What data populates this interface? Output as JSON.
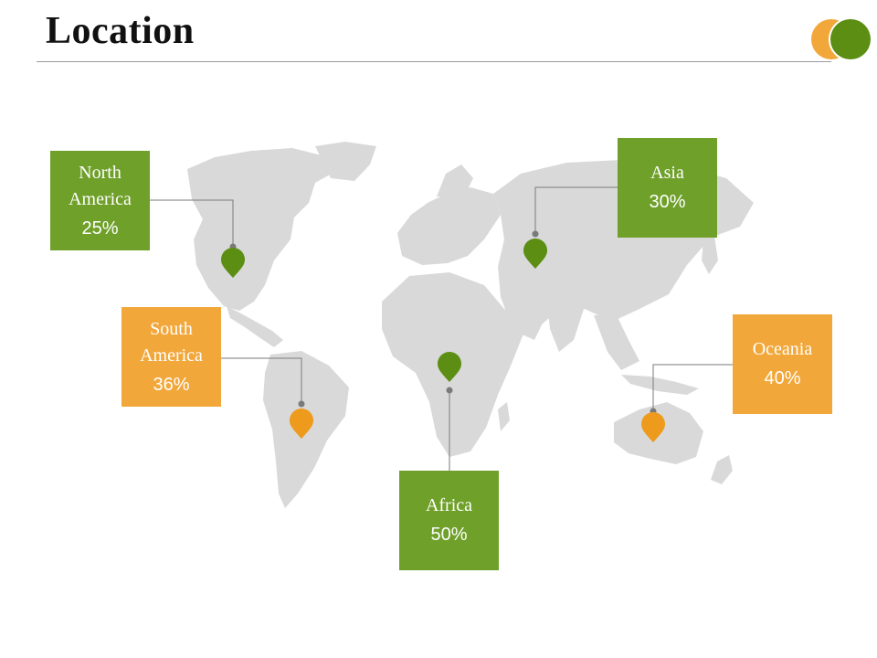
{
  "title": "Location",
  "colors": {
    "green": "#6fa02a",
    "orange": "#f2a73a",
    "pin_green": "#5b8e12",
    "pin_orange": "#ee9a1c",
    "map": "#d9d9d9",
    "leader": "#7a7a7a"
  },
  "regions": [
    {
      "id": "north-america",
      "name": "North\nAmerica",
      "value": "25%",
      "color": "green"
    },
    {
      "id": "south-america",
      "name": "South\nAmerica",
      "value": "36%",
      "color": "orange"
    },
    {
      "id": "africa",
      "name": "Africa",
      "value": "50%",
      "color": "green"
    },
    {
      "id": "asia",
      "name": "Asia",
      "value": "30%",
      "color": "green"
    },
    {
      "id": "oceania",
      "name": "Oceania",
      "value": "40%",
      "color": "orange"
    }
  ]
}
